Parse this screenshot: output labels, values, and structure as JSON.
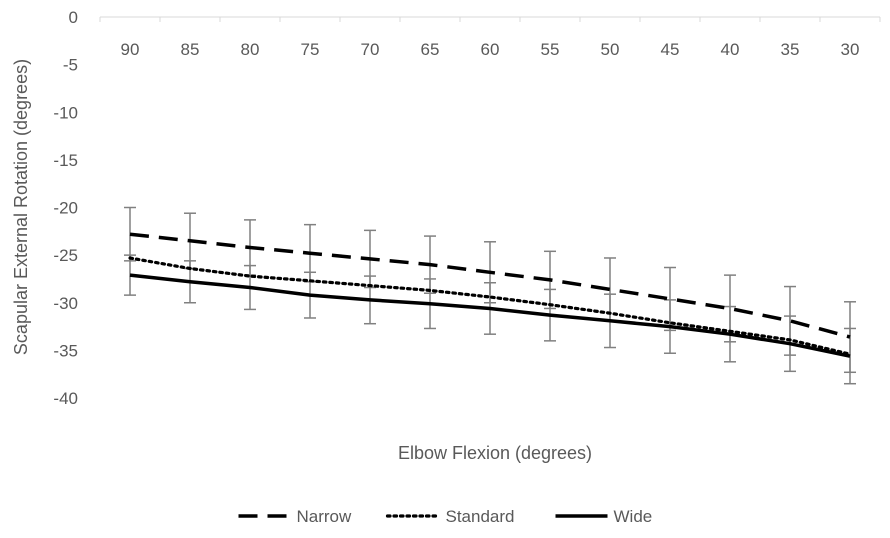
{
  "chart_data": {
    "type": "line",
    "xlabel": "Elbow Flexion (degrees)",
    "ylabel": "Scapular External Rotation (degrees)",
    "categories": [
      "90",
      "85",
      "80",
      "75",
      "70",
      "65",
      "60",
      "55",
      "50",
      "45",
      "40",
      "35",
      "30"
    ],
    "y_ticks": [
      "0",
      "-5",
      "-10",
      "-15",
      "-20",
      "-25",
      "-30",
      "-35",
      "-40"
    ],
    "ylim": [
      -40,
      0
    ],
    "x_axis_position": "top",
    "grid": false,
    "legend_position": "bottom",
    "series": [
      {
        "name": "Narrow",
        "style": "dashed",
        "color": "#000000",
        "values": [
          -22.8,
          -23.5,
          -24.2,
          -24.8,
          -25.4,
          -26.0,
          -26.8,
          -27.6,
          -28.6,
          -29.6,
          -30.6,
          -31.9,
          -33.6
        ],
        "error": [
          2.8,
          2.9,
          2.9,
          3.0,
          3.0,
          3.0,
          3.2,
          3.0,
          3.3,
          3.3,
          3.5,
          3.6,
          3.7
        ]
      },
      {
        "name": "Standard",
        "style": "dotted",
        "color": "#000000",
        "values": [
          -25.3,
          -26.4,
          -27.2,
          -27.7,
          -28.2,
          -28.7,
          -29.4,
          -30.2,
          -31.1,
          -32.1,
          -33.0,
          -33.9,
          -35.4
        ]
      },
      {
        "name": "Wide",
        "style": "solid",
        "color": "#000000",
        "values": [
          -27.1,
          -27.8,
          -28.4,
          -29.2,
          -29.7,
          -30.1,
          -30.6,
          -31.3,
          -31.9,
          -32.5,
          -33.3,
          -34.3,
          -35.6
        ],
        "error": [
          2.1,
          2.2,
          2.3,
          2.4,
          2.5,
          2.6,
          2.7,
          2.7,
          2.8,
          2.8,
          2.9,
          2.9,
          2.9
        ]
      }
    ]
  }
}
